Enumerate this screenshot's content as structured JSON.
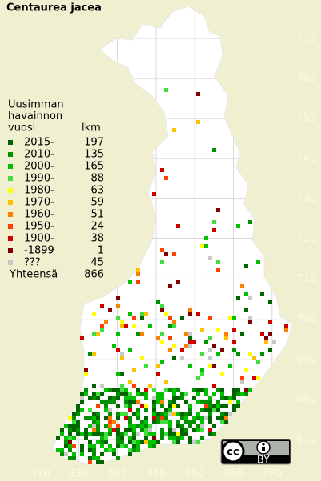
{
  "title": "Centaurea jacea",
  "legend": {
    "heading": [
      "Uusimman",
      "havainnon",
      "vuosi"
    ],
    "count_heading": "lkm",
    "rows": [
      {
        "label": "2015-",
        "count": "197",
        "color": "#006400"
      },
      {
        "label": "2010-",
        "count": "135",
        "color": "#009000"
      },
      {
        "label": "2000-",
        "count": "165",
        "color": "#00c000"
      },
      {
        "label": "1990-",
        "count": "88",
        "color": "#40e040"
      },
      {
        "label": "1980-",
        "count": "63",
        "color": "#ffff00"
      },
      {
        "label": "1970-",
        "count": "59",
        "color": "#ffc000"
      },
      {
        "label": "1960-",
        "count": "51",
        "color": "#ff8000"
      },
      {
        "label": "1950-",
        "count": "24",
        "color": "#ff4000"
      },
      {
        "label": "1900-",
        "count": "38",
        "color": "#d00000"
      },
      {
        "label": "-1899",
        "count": "1",
        "color": "#800000"
      },
      {
        "label": "???",
        "count": "45",
        "color": "#c8c8c8"
      }
    ],
    "total_label": "Yhteensä",
    "total": "866"
  },
  "x_labels": [
    "310",
    "320",
    "330",
    "340",
    "350",
    "360",
    "370"
  ],
  "y_labels": [
    "770",
    "760",
    "750",
    "740",
    "730",
    "720",
    "710",
    "700",
    "690",
    "680",
    "670"
  ],
  "badge": {
    "cc": "cc",
    "by": "BY"
  }
}
